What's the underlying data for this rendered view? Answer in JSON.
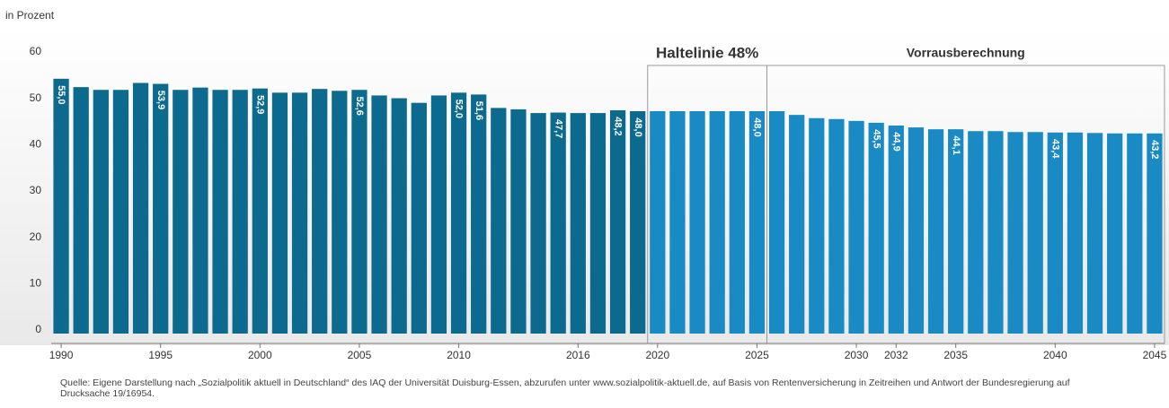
{
  "chart_data": {
    "type": "bar",
    "y_label": "in Prozent",
    "x": [
      1990,
      1991,
      1992,
      1993,
      1994,
      1995,
      1996,
      1997,
      1998,
      1999,
      2000,
      2001,
      2002,
      2003,
      2004,
      2005,
      2006,
      2007,
      2008,
      2009,
      2010,
      2011,
      2012,
      2013,
      2014,
      2015,
      2016,
      2017,
      2018,
      2019,
      2020,
      2021,
      2022,
      2023,
      2024,
      2025,
      2026,
      2027,
      2028,
      2029,
      2030,
      2031,
      2032,
      2033,
      2034,
      2035,
      2036,
      2037,
      2038,
      2039,
      2040,
      2041,
      2042,
      2043,
      2044,
      2045
    ],
    "values": [
      55.0,
      53.2,
      52.6,
      52.6,
      54.1,
      53.9,
      52.6,
      53.1,
      52.6,
      52.6,
      52.9,
      52.0,
      52.0,
      52.8,
      52.4,
      52.6,
      51.4,
      50.8,
      49.8,
      51.4,
      52.0,
      51.6,
      48.7,
      48.4,
      47.6,
      47.7,
      47.6,
      47.6,
      48.2,
      48.0,
      48.0,
      48.0,
      48.0,
      48.0,
      48.0,
      48.0,
      48.0,
      47.2,
      46.5,
      46.3,
      45.9,
      45.5,
      44.9,
      44.5,
      44.1,
      44.1,
      43.7,
      43.7,
      43.5,
      43.5,
      43.4,
      43.4,
      43.3,
      43.2,
      43.2,
      43.2
    ],
    "value_labels": [
      "55,0",
      null,
      null,
      null,
      null,
      "53,9",
      null,
      null,
      null,
      null,
      "52,9",
      null,
      null,
      null,
      null,
      "52,6",
      null,
      null,
      null,
      null,
      "52,0",
      "51,6",
      null,
      null,
      null,
      "47,7",
      null,
      null,
      "48,2",
      "48,0",
      null,
      null,
      null,
      null,
      null,
      "48,0",
      null,
      null,
      null,
      null,
      null,
      "45,5",
      "44,9",
      null,
      null,
      "44,1",
      null,
      null,
      null,
      null,
      "43,4",
      null,
      null,
      null,
      null,
      "43,2"
    ],
    "colors": [
      "#0b6a8e",
      "#0b6a8e",
      "#0b6a8e",
      "#0b6a8e",
      "#0b6a8e",
      "#0b6a8e",
      "#0b6a8e",
      "#0b6a8e",
      "#0b6a8e",
      "#0b6a8e",
      "#0b6a8e",
      "#0b6a8e",
      "#0b6a8e",
      "#0b6a8e",
      "#0b6a8e",
      "#0b6a8e",
      "#0b6a8e",
      "#0b6a8e",
      "#0b6a8e",
      "#0b6a8e",
      "#0b6a8e",
      "#0b6a8e",
      "#0b6a8e",
      "#0b6a8e",
      "#0b6a8e",
      "#0b6a8e",
      "#0b6a8e",
      "#0b6a8e",
      "#0b6a8e",
      "#0b6a8e",
      "#1a8ac4",
      "#1a8ac4",
      "#1a8ac4",
      "#1a8ac4",
      "#1a8ac4",
      "#1a8ac4",
      "#1a8ac4",
      "#1a8ac4",
      "#1a8ac4",
      "#1a8ac4",
      "#1a8ac4",
      "#1a8ac4",
      "#1a8ac4",
      "#1a8ac4",
      "#1a8ac4",
      "#1a8ac4",
      "#1a8ac4",
      "#1a8ac4",
      "#1a8ac4",
      "#1a8ac4",
      "#1a8ac4",
      "#1a8ac4",
      "#1a8ac4",
      "#1a8ac4",
      "#1a8ac4",
      "#1a8ac4"
    ],
    "xlim": [
      1989.5,
      2045.5
    ],
    "xticks": [
      1990,
      1995,
      2000,
      2005,
      2010,
      2016,
      2020,
      2025,
      2030,
      2032,
      2035,
      2040,
      2045
    ],
    "ylim": [
      0,
      60
    ],
    "yticks": [
      0,
      10,
      20,
      30,
      40,
      50,
      60
    ],
    "grid": false,
    "annotations": [
      {
        "text": "Haltelinie 48%",
        "x_range": [
          2020,
          2025
        ]
      },
      {
        "text": "Vorrausberechnung",
        "x_range": [
          2026,
          2045
        ]
      }
    ],
    "source": "Quelle: Eigene Darstellung nach „Sozialpolitik aktuell in Deutschland“ des IAQ der Universität Duisburg-Essen, abzurufen unter www.sozialpolitik-aktuell.de, auf Basis von Rentenversicherung in Zeitreihen und Antwort der Bundesregierung auf Drucksache 19/16954."
  }
}
